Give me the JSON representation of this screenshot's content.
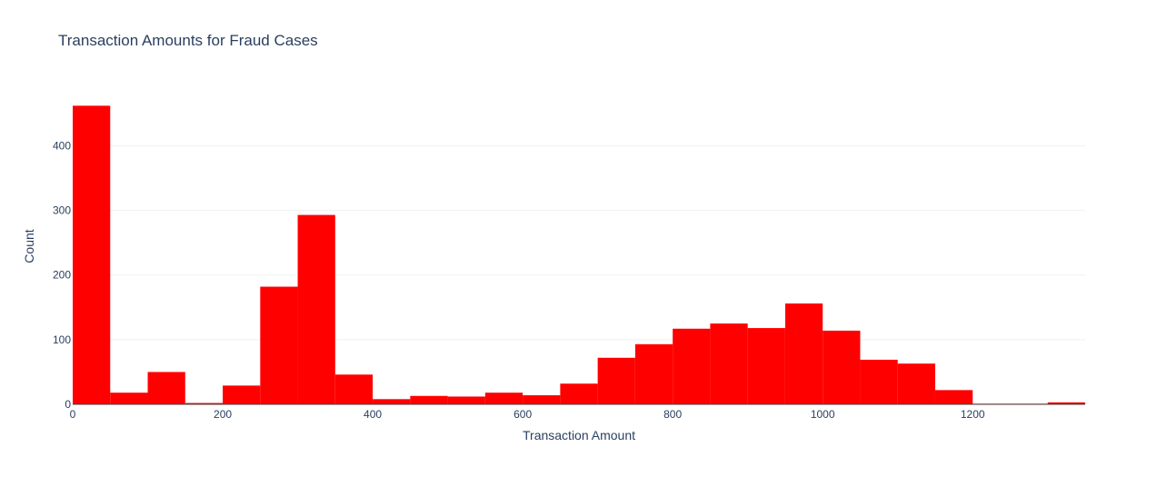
{
  "chart_data": {
    "type": "bar",
    "title": "Transaction Amounts for Fraud Cases",
    "xlabel": "Transaction Amount",
    "ylabel": "Count",
    "xlim": [
      0,
      1350
    ],
    "ylim": [
      0,
      485
    ],
    "bin_width": 50,
    "bar_color": "#ff0000",
    "grid": true,
    "x_ticks": [
      0,
      200,
      400,
      600,
      800,
      1000,
      1200
    ],
    "y_ticks": [
      0,
      100,
      200,
      300,
      400
    ],
    "bins": [
      {
        "start": 0,
        "count": 462
      },
      {
        "start": 50,
        "count": 18
      },
      {
        "start": 100,
        "count": 50
      },
      {
        "start": 150,
        "count": 2
      },
      {
        "start": 200,
        "count": 29
      },
      {
        "start": 250,
        "count": 182
      },
      {
        "start": 300,
        "count": 293
      },
      {
        "start": 350,
        "count": 46
      },
      {
        "start": 400,
        "count": 8
      },
      {
        "start": 450,
        "count": 13
      },
      {
        "start": 500,
        "count": 12
      },
      {
        "start": 550,
        "count": 18
      },
      {
        "start": 600,
        "count": 14
      },
      {
        "start": 650,
        "count": 32
      },
      {
        "start": 700,
        "count": 72
      },
      {
        "start": 750,
        "count": 93
      },
      {
        "start": 800,
        "count": 117
      },
      {
        "start": 850,
        "count": 125
      },
      {
        "start": 900,
        "count": 118
      },
      {
        "start": 950,
        "count": 156
      },
      {
        "start": 1000,
        "count": 114
      },
      {
        "start": 1050,
        "count": 69
      },
      {
        "start": 1100,
        "count": 63
      },
      {
        "start": 1150,
        "count": 22
      },
      {
        "start": 1200,
        "count": 1
      },
      {
        "start": 1250,
        "count": 1
      },
      {
        "start": 1300,
        "count": 3
      }
    ]
  }
}
